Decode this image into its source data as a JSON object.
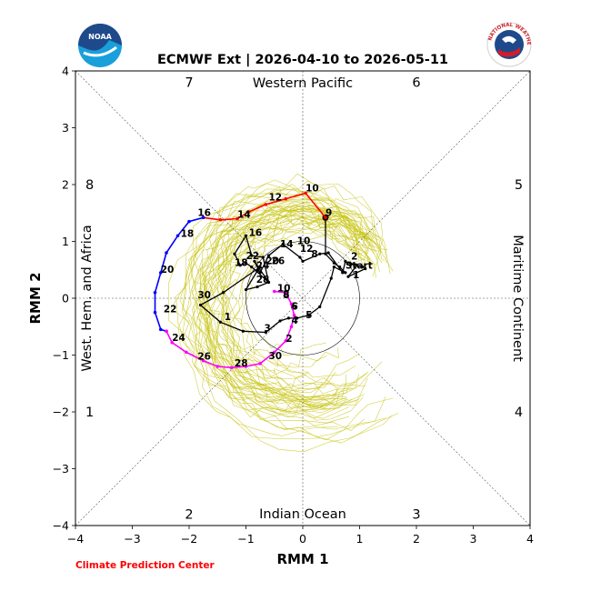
{
  "header": {
    "title": "ECMWF Ext | 2026-04-10 to 2026-05-11",
    "left_logo_text": "NOAA",
    "right_logo_text": "NATIONAL WEATHER SERVICE",
    "credit": "Climate Prediction Center"
  },
  "colors": {
    "ensemble": "#c8c414",
    "observed": "#000000",
    "forecast_week1": "#ff0000",
    "forecast_week2": "#0000ff",
    "forecast_week3": "#ff00ff",
    "credit": "#ff0000",
    "noaa_dark": "#1e4a8c",
    "noaa_light": "#19a0db"
  },
  "chart_data": {
    "type": "line",
    "title": "ECMWF Ext | 2026-04-10 to 2026-05-11",
    "xlabel": "RMM 1",
    "ylabel": "RMM 2",
    "xlim": [
      -4,
      4
    ],
    "ylim": [
      -4,
      4
    ],
    "xticks": [
      "−4",
      "−3",
      "−2",
      "−1",
      "0",
      "1",
      "2",
      "3",
      "4"
    ],
    "yticks": [
      "−4",
      "−3",
      "−2",
      "−1",
      "0",
      "1",
      "2",
      "3",
      "4"
    ],
    "unit_circle_radius": 1,
    "regions": {
      "top": "Western Pacific",
      "bottom": "Indian Ocean",
      "left": "West. Hem. and Africa",
      "right": "Maritime Continent"
    },
    "phases": [
      {
        "label": "1",
        "x": -3.75,
        "y": -2.0
      },
      {
        "label": "2",
        "x": -2.0,
        "y": -3.8
      },
      {
        "label": "3",
        "x": 2.0,
        "y": -3.8
      },
      {
        "label": "4",
        "x": 3.8,
        "y": -2.0
      },
      {
        "label": "5",
        "x": 3.8,
        "y": 2.0
      },
      {
        "label": "6",
        "x": 2.0,
        "y": 3.8
      },
      {
        "label": "7",
        "x": -2.0,
        "y": 3.8
      },
      {
        "label": "8",
        "x": -3.75,
        "y": 2.0
      }
    ],
    "start_label": "Start",
    "observed": {
      "x": [
        1.1,
        0.8,
        0.95,
        1.05,
        0.85,
        0.75,
        0.7,
        0.45,
        0.3,
        0.0,
        -0.05,
        -0.35,
        -0.6,
        -0.75,
        -0.85,
        -0.6,
        -0.7,
        -0.9,
        -1.0,
        -1.2,
        -1.1,
        -1.0,
        -0.9,
        -0.6,
        -0.8,
        -1.0,
        -0.8,
        -0.75,
        -1.4,
        -1.8,
        -1.45,
        -1.05,
        -0.65,
        -0.4,
        -0.25,
        -0.1,
        0.1,
        0.3,
        0.5,
        0.55,
        0.75,
        0.65,
        0.55,
        0.4,
        0.4
      ],
      "y": [
        0.52,
        0.38,
        0.58,
        0.55,
        0.6,
        0.65,
        0.45,
        0.8,
        0.78,
        0.65,
        0.72,
        0.95,
        0.75,
        0.45,
        0.65,
        0.28,
        0.72,
        0.75,
        1.1,
        0.78,
        0.58,
        0.62,
        0.55,
        0.28,
        0.2,
        0.15,
        0.48,
        0.55,
        0.1,
        -0.12,
        -0.42,
        -0.58,
        -0.6,
        -0.4,
        -0.35,
        -0.35,
        -0.3,
        -0.15,
        0.35,
        0.55,
        0.45,
        0.55,
        0.62,
        0.78,
        1.42
      ],
      "day_labels": [
        {
          "text": "1",
          "x": 0.88,
          "y": 0.35
        },
        {
          "text": "Start",
          "x": 0.75,
          "y": 0.52
        },
        {
          "text": "2",
          "x": 0.85,
          "y": 0.68
        },
        {
          "text": "8",
          "x": 0.15,
          "y": 0.72
        },
        {
          "text": "10",
          "x": -0.1,
          "y": 0.95
        },
        {
          "text": "12",
          "x": -0.05,
          "y": 0.82
        },
        {
          "text": "14",
          "x": -0.4,
          "y": 0.9
        },
        {
          "text": "16",
          "x": -0.95,
          "y": 1.1
        },
        {
          "text": "18",
          "x": -1.2,
          "y": 0.57
        },
        {
          "text": "20",
          "x": -0.65,
          "y": 0.6
        },
        {
          "text": "22",
          "x": -1.0,
          "y": 0.69
        },
        {
          "text": "24",
          "x": -0.82,
          "y": 0.52
        },
        {
          "text": "26",
          "x": -0.55,
          "y": 0.6
        },
        {
          "text": "28",
          "x": -0.82,
          "y": 0.27
        },
        {
          "text": "30",
          "x": -1.85,
          "y": 0.0
        },
        {
          "text": "1",
          "x": -1.38,
          "y": -0.38
        },
        {
          "text": "3",
          "x": -0.68,
          "y": -0.58
        },
        {
          "text": "4",
          "x": -0.2,
          "y": -0.45
        },
        {
          "text": "5",
          "x": 0.05,
          "y": -0.35
        },
        {
          "text": "6",
          "x": -0.22,
          "y": -0.2
        },
        {
          "text": "8",
          "x": -0.35,
          "y": 0.02
        },
        {
          "text": "9",
          "x": 0.4,
          "y": 1.45
        }
      ]
    },
    "series": [
      {
        "color": "#ff0000",
        "x": [
          0.4,
          0.05,
          -0.3,
          -0.65,
          -0.95,
          -1.15,
          -1.45,
          -1.75
        ],
        "y": [
          1.42,
          1.85,
          1.75,
          1.65,
          1.52,
          1.4,
          1.38,
          1.42
        ],
        "labels": [
          {
            "text": "10",
            "x": 0.05,
            "y": 1.88
          },
          {
            "text": "12",
            "x": -0.6,
            "y": 1.72
          },
          {
            "text": "14",
            "x": -1.15,
            "y": 1.42
          },
          {
            "text": "16",
            "x": -1.85,
            "y": 1.45
          }
        ]
      },
      {
        "color": "#0000ff",
        "x": [
          -1.75,
          -2.0,
          -2.2,
          -2.4,
          -2.5,
          -2.6,
          -2.6,
          -2.5,
          -2.4
        ],
        "y": [
          1.42,
          1.35,
          1.1,
          0.8,
          0.45,
          0.1,
          -0.25,
          -0.55,
          -0.58
        ],
        "labels": [
          {
            "text": "18",
            "x": -2.15,
            "y": 1.08
          },
          {
            "text": "20",
            "x": -2.5,
            "y": 0.45
          },
          {
            "text": "22",
            "x": -2.45,
            "y": -0.25
          }
        ]
      },
      {
        "color": "#ff00ff",
        "x": [
          -2.4,
          -2.3,
          -2.05,
          -1.75,
          -1.5,
          -1.25,
          -1.0,
          -0.75,
          -0.5,
          -0.3,
          -0.2,
          -0.15,
          -0.2,
          -0.3,
          -0.5
        ],
        "y": [
          -0.58,
          -0.78,
          -0.95,
          -1.1,
          -1.2,
          -1.22,
          -1.2,
          -1.15,
          -0.95,
          -0.75,
          -0.5,
          -0.3,
          -0.1,
          0.1,
          0.12
        ],
        "labels": [
          {
            "text": "24",
            "x": -2.3,
            "y": -0.75
          },
          {
            "text": "26",
            "x": -1.85,
            "y": -1.08
          },
          {
            "text": "28",
            "x": -1.2,
            "y": -1.2
          },
          {
            "text": "30",
            "x": -0.6,
            "y": -1.07
          },
          {
            "text": "2",
            "x": -0.3,
            "y": -0.77
          },
          {
            "text": "4",
            "x": -0.2,
            "y": -0.45
          },
          {
            "text": "6",
            "x": -0.2,
            "y": -0.2
          },
          {
            "text": "8",
            "x": -0.35,
            "y": 0.0
          },
          {
            "text": "10",
            "x": -0.45,
            "y": 0.12
          }
        ]
      }
    ]
  }
}
